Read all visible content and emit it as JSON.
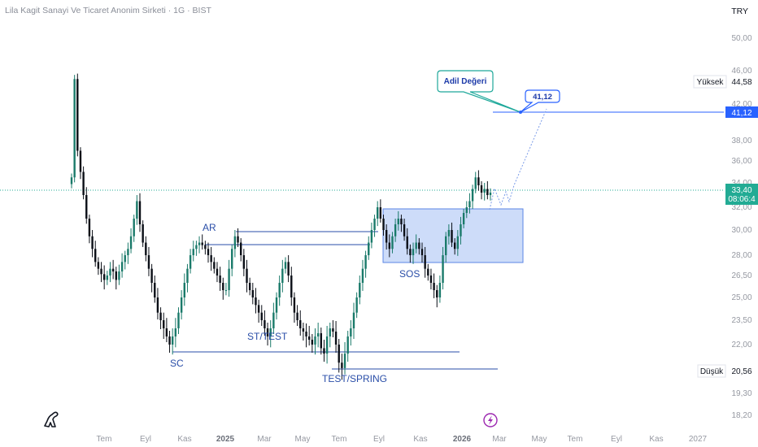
{
  "header": {
    "title": "Lila Kagit Sanayi Ve Ticaret Anonim Sirketi · 1G · BIST",
    "currency": "TRY"
  },
  "chart_data": {
    "type": "candlestick",
    "ylim": [
      16.8,
      54.0
    ],
    "y_ticks": [
      "50,00",
      "46,00",
      "42,00",
      "38,00",
      "36,00",
      "34,00",
      "32,00",
      "30,00",
      "28,00",
      "26,50",
      "25,00",
      "23,50",
      "22,00",
      "19,30",
      "18,20"
    ],
    "x_ticks": [
      "Tem",
      "Eyl",
      "Kas",
      "2025",
      "Mar",
      "May",
      "Tem",
      "Eyl",
      "Kas",
      "2026",
      "Mar",
      "May",
      "Tem",
      "Eyl",
      "Kas",
      "2027"
    ],
    "x_ticks_bold": [
      "2025",
      "2026"
    ],
    "series": [
      {
        "values": [
          34.5,
          45.0,
          37.0,
          35.0,
          33.0,
          31.0,
          29.5,
          28.5,
          27.5,
          27.0,
          26.6,
          26.2,
          26.5,
          27.0,
          26.8,
          26.2,
          26.8,
          27.5,
          28.0,
          28.5,
          29.5,
          31.0,
          32.5,
          30.5,
          29.0,
          28.0,
          27.0,
          26.0,
          25.0,
          24.0,
          23.5,
          23.0,
          22.5,
          22.0,
          22.5,
          23.0,
          24.0,
          25.0,
          26.0,
          27.0,
          28.0,
          28.5,
          28.8,
          29.0,
          28.8,
          28.5,
          28.0,
          27.5,
          27.0,
          26.5,
          26.0,
          25.5,
          25.5,
          27.0,
          28.5,
          29.5,
          29.0,
          28.0,
          27.0,
          26.0,
          25.5,
          25.0,
          24.5,
          24.0,
          23.5,
          23.0,
          22.5,
          23.0,
          24.0,
          25.0,
          26.0,
          27.0,
          27.5,
          26.5,
          25.0,
          24.0,
          23.5,
          23.0,
          22.8,
          22.5,
          22.3,
          22.0,
          22.5,
          22.7,
          21.8,
          21.5,
          22.5,
          23.0,
          22.8,
          22.0,
          21.0,
          20.7,
          21.5,
          22.5,
          23.0,
          24.0,
          25.0,
          26.0,
          27.0,
          28.0,
          29.0,
          30.0,
          31.0,
          32.0,
          31.0,
          30.0,
          29.0,
          28.5,
          29.5,
          30.5,
          31.0,
          30.5,
          29.5,
          28.5,
          28.0,
          28.5,
          29.0,
          28.5,
          28.0,
          27.0,
          26.5,
          26.0,
          25.5,
          25.0,
          26.0,
          28.0,
          29.5,
          30.0,
          29.0,
          28.5,
          29.5,
          30.5,
          31.5,
          32.0,
          32.5,
          33.5,
          34.5,
          33.8,
          33.2,
          33.5,
          33.0,
          33.2
        ]
      }
    ],
    "current_price": "33,40",
    "countdown": "08:06:4",
    "high_label": "Yüksek",
    "high_value": "44,58",
    "low_label": "Düşük",
    "low_value": "20,56",
    "target_value": "41,12",
    "annotations": {
      "ar": "AR",
      "sc": "SC",
      "st_test": "ST/TEST",
      "test_spring": "TEST/SPRING",
      "sos": "SOS",
      "adil": "Adil Değeri",
      "target": "41,12"
    }
  },
  "icons": {
    "bolt": "bolt-icon",
    "logo": "dino-logo-icon"
  }
}
